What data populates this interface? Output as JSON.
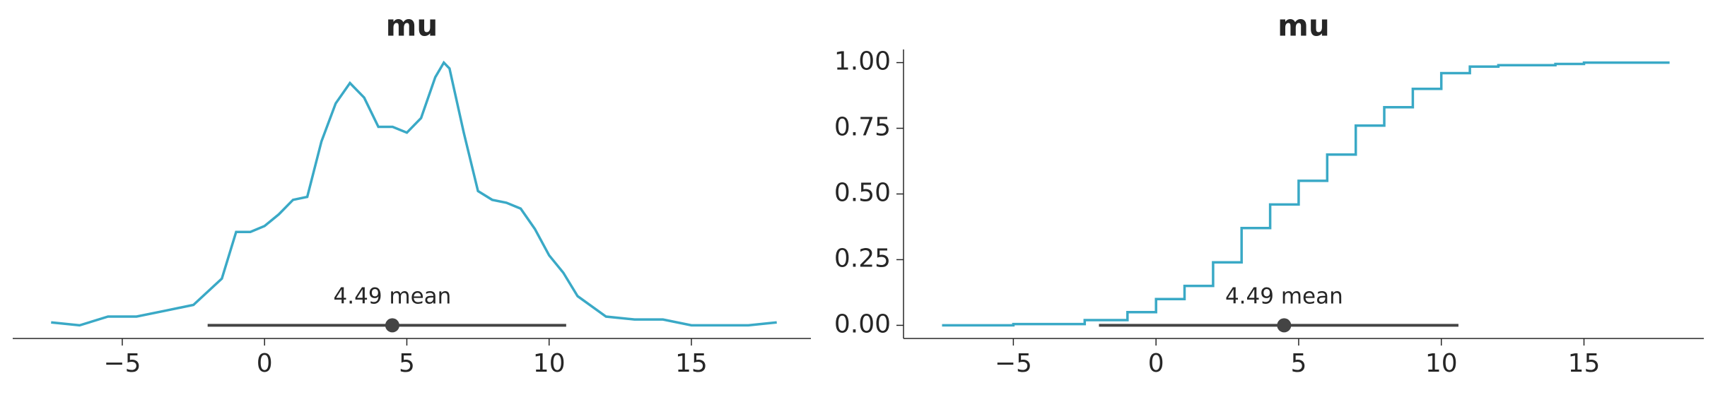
{
  "chart_data": [
    {
      "type": "kde",
      "title": "mu",
      "color": "#3aa9c6",
      "x": [
        -7.5,
        -6.5,
        -5.5,
        -4.5,
        -3.5,
        -2.5,
        -1.5,
        -1,
        -0.5,
        0,
        0.5,
        1,
        1.5,
        2,
        2.5,
        3,
        3.5,
        4,
        4.5,
        5,
        5.5,
        6,
        6.3,
        6.5,
        7,
        7.5,
        8,
        8.5,
        9,
        9.5,
        10,
        10.5,
        11,
        12,
        13,
        14,
        15,
        16,
        17,
        18
      ],
      "values": [
        0.001,
        0,
        0.003,
        0.003,
        0.005,
        0.007,
        0.016,
        0.032,
        0.032,
        0.034,
        0.038,
        0.043,
        0.044,
        0.063,
        0.076,
        0.083,
        0.078,
        0.068,
        0.068,
        0.066,
        0.071,
        0.085,
        0.09,
        0.088,
        0.066,
        0.046,
        0.043,
        0.042,
        0.04,
        0.033,
        0.024,
        0.018,
        0.01,
        0.003,
        0.002,
        0.002,
        0,
        0,
        0,
        0.001
      ],
      "xlim": [
        -8.85,
        19.2
      ],
      "ylim": [
        -0.0045,
        0.0945
      ],
      "xticks": [
        {
          "value": -5,
          "label": "−5"
        },
        0,
        5,
        10,
        15
      ],
      "hdi": {
        "interval": [
          -2,
          10.6
        ],
        "mean": 4.49,
        "label": "4.49 mean"
      }
    },
    {
      "type": "ecdf",
      "title": "mu",
      "color": "#3aa9c6",
      "x": [
        -7.5,
        -5,
        -2.5,
        -1,
        0,
        1,
        2,
        3,
        4,
        5,
        6,
        7,
        8,
        9,
        10,
        11,
        12,
        14,
        15,
        18
      ],
      "values": [
        0,
        0.005,
        0.02,
        0.05,
        0.1,
        0.15,
        0.24,
        0.37,
        0.46,
        0.55,
        0.65,
        0.76,
        0.83,
        0.9,
        0.96,
        0.985,
        0.99,
        0.995,
        1,
        1
      ],
      "xlim": [
        -8.85,
        19.2
      ],
      "ylim": [
        -0.05,
        1.05
      ],
      "xticks": [
        {
          "value": -5,
          "label": "−5"
        },
        0,
        5,
        10,
        15
      ],
      "yticks": [
        {
          "value": 0,
          "label": "0.00"
        },
        {
          "value": 0.25,
          "label": "0.25"
        },
        {
          "value": 0.5,
          "label": "0.50"
        },
        {
          "value": 0.75,
          "label": "0.75"
        },
        {
          "value": 1,
          "label": "1.00"
        }
      ],
      "hdi": {
        "interval": [
          -2,
          10.6
        ],
        "mean": 4.49,
        "label": "4.49 mean"
      }
    }
  ]
}
